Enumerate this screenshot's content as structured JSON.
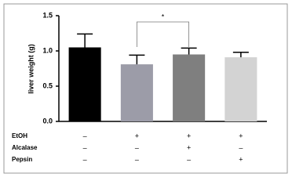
{
  "chart_data": {
    "type": "bar",
    "y_label": "liver weight (g)",
    "categories": [
      null,
      null,
      null,
      null
    ],
    "values": [
      1.05,
      0.81,
      0.95,
      0.91
    ],
    "errors": [
      0.19,
      0.13,
      0.09,
      0.07
    ],
    "colors": [
      "#000000",
      "#9c9ca8",
      "#7f7f7f",
      "#d3d3d3"
    ],
    "ylim": [
      0,
      1.5
    ],
    "yticks": [
      {
        "value": 0,
        "label": "0.0"
      },
      0.5,
      {
        "value": 1,
        "label": "1.0"
      },
      {
        "value": 1.5,
        "label": "1.5"
      }
    ],
    "significance": {
      "label": "*",
      "from": 1,
      "to": 2
    },
    "treatments": [
      {
        "name": "EtOH",
        "values": [
          "–",
          "+",
          "+",
          "+"
        ]
      },
      {
        "name": "Alcalase",
        "values": [
          "–",
          "–",
          "+",
          "–"
        ]
      },
      {
        "name": "Pepsin",
        "values": [
          "–",
          "–",
          "–",
          "+"
        ]
      }
    ]
  }
}
